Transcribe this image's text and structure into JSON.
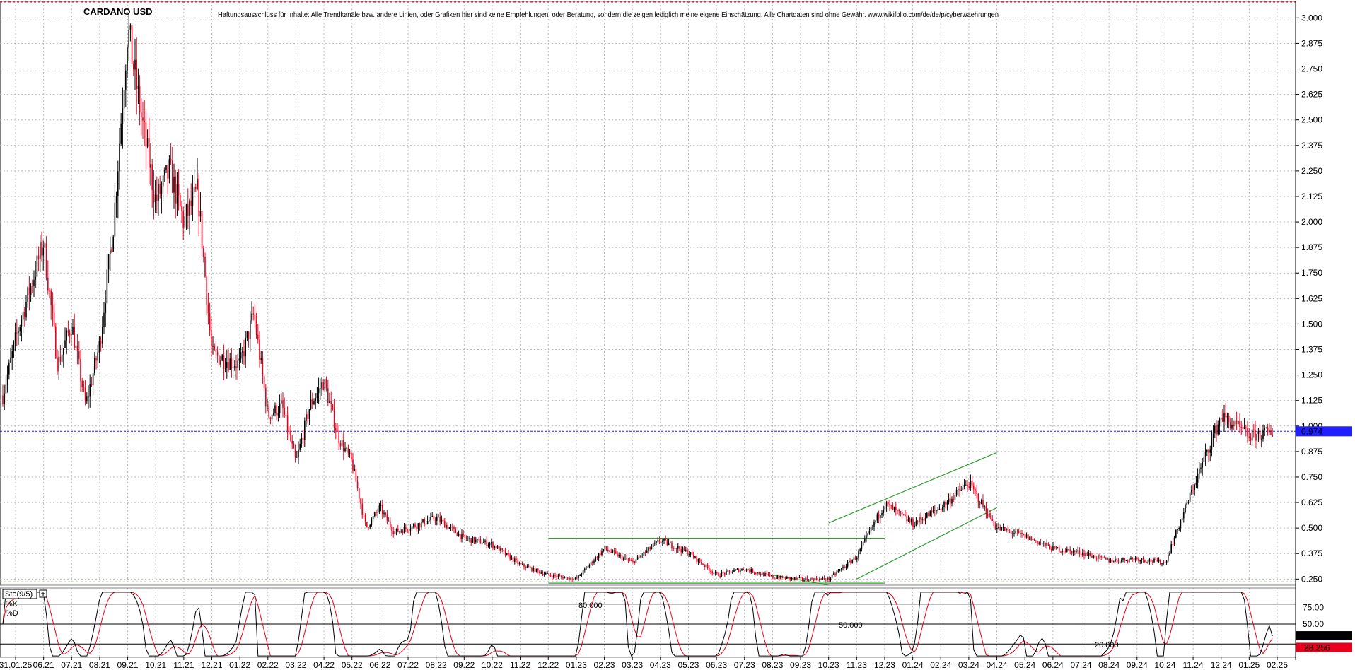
{
  "chart_data": [
    {
      "type": "candlestick",
      "title": "CARDANO USD",
      "subtitle": "Haftungsausschluss für Inhalte: Alle Trendkanäle bzw. andere Linien, oder Grafiken hier sind keine Empfehlungen, oder Beratung, sondern die zeigen lediglich meine eigene Einschätzung. Alle Chartdaten sind ohne Gewähr. www.wikifolio.com/de/de/p/cyberwaehrungen",
      "x_ticks": [
        "31.01.25",
        "06.21",
        "07.21",
        "08.21",
        "09.21",
        "10.21",
        "11.21",
        "12.21",
        "01.22",
        "02.22",
        "03.22",
        "04.22",
        "05.22",
        "06.22",
        "07.22",
        "08.22",
        "09.22",
        "10.22",
        "11.22",
        "12.22",
        "01.23",
        "02.23",
        "03.23",
        "04.23",
        "05.23",
        "06.23",
        "07.23",
        "08.23",
        "09.23",
        "10.23",
        "11.23",
        "12.23",
        "01.24",
        "02.24",
        "03.24",
        "04.24",
        "05.24",
        "06.24",
        "07.24",
        "08.24",
        "09.24",
        "10.24",
        "11.24",
        "12.24",
        "01.25",
        "02.25"
      ],
      "y_ticks": [
        "3.000",
        "2.875",
        "2.750",
        "2.625",
        "2.500",
        "2.375",
        "2.250",
        "2.125",
        "2.000",
        "1.875",
        "1.750",
        "1.625",
        "1.500",
        "1.375",
        "1.250",
        "1.125",
        "1.000",
        "0.875",
        "0.750",
        "0.625",
        "0.500",
        "0.375",
        "0.250"
      ],
      "ylim": [
        0.22,
        3.06
      ],
      "grid": true,
      "last_price_label": "0.974",
      "last_price": 0.974,
      "colors": {
        "up": "#000000",
        "down": "#e8001c",
        "trend": "#2e9e2e",
        "last": "#1f1fff"
      },
      "anchors": [
        [
          "05.21",
          1.15
        ],
        [
          "05.21",
          1.45
        ],
        [
          "06.21",
          1.9
        ],
        [
          "06.21",
          1.3
        ],
        [
          "07.21",
          1.5
        ],
        [
          "07.21",
          1.1
        ],
        [
          "08.21",
          1.4
        ],
        [
          "08.21",
          2.0
        ],
        [
          "09.21",
          2.95
        ],
        [
          "09.21",
          2.5
        ],
        [
          "10.21",
          2.1
        ],
        [
          "10.21",
          2.25
        ],
        [
          "11.21",
          2.0
        ],
        [
          "11.21",
          2.15
        ],
        [
          "12.21",
          1.35
        ],
        [
          "01.22",
          1.3
        ],
        [
          "01.22",
          1.55
        ],
        [
          "02.22",
          1.05
        ],
        [
          "02.22",
          1.1
        ],
        [
          "03.22",
          0.82
        ],
        [
          "03.22",
          1.1
        ],
        [
          "04.22",
          1.22
        ],
        [
          "04.22",
          0.95
        ],
        [
          "05.22",
          0.82
        ],
        [
          "05.22",
          0.5
        ],
        [
          "06.22",
          0.6
        ],
        [
          "06.22",
          0.48
        ],
        [
          "07.22",
          0.5
        ],
        [
          "08.22",
          0.55
        ],
        [
          "09.22",
          0.45
        ],
        [
          "10.22",
          0.42
        ],
        [
          "11.22",
          0.32
        ],
        [
          "12.22",
          0.27
        ],
        [
          "01.23",
          0.25
        ],
        [
          "02.23",
          0.4
        ],
        [
          "03.23",
          0.33
        ],
        [
          "04.23",
          0.44
        ],
        [
          "05.23",
          0.38
        ],
        [
          "06.23",
          0.27
        ],
        [
          "07.23",
          0.3
        ],
        [
          "08.23",
          0.26
        ],
        [
          "09.23",
          0.25
        ],
        [
          "10.23",
          0.25
        ],
        [
          "11.23",
          0.36
        ],
        [
          "12.23",
          0.62
        ],
        [
          "01.24",
          0.52
        ],
        [
          "02.24",
          0.6
        ],
        [
          "03.24",
          0.72
        ],
        [
          "04.24",
          0.5
        ],
        [
          "05.24",
          0.46
        ],
        [
          "06.24",
          0.4
        ],
        [
          "07.24",
          0.38
        ],
        [
          "08.24",
          0.34
        ],
        [
          "09.24",
          0.35
        ],
        [
          "10.24",
          0.33
        ],
        [
          "11.24",
          0.7
        ],
        [
          "12.24",
          1.05
        ],
        [
          "01.25",
          0.95
        ],
        [
          "02.25",
          0.974
        ]
      ],
      "trendlines": [
        {
          "from": [
            "12.22",
            0.45
          ],
          "to": [
            "12.23",
            0.45
          ]
        },
        {
          "from": [
            "12.22",
            0.23
          ],
          "to": [
            "12.23",
            0.23
          ]
        },
        {
          "from": [
            "08.23",
            0.27
          ],
          "to": [
            "10.23",
            0.22
          ]
        },
        {
          "from": [
            "10.23",
            0.525
          ],
          "to": [
            "04.24",
            0.87
          ]
        },
        {
          "from": [
            "11.23",
            0.25
          ],
          "to": [
            "04.24",
            0.6
          ]
        }
      ]
    },
    {
      "type": "line",
      "title": "Sto(9/5)",
      "series": [
        {
          "name": "%K",
          "color": "#000000"
        },
        {
          "name": "%D",
          "color": "#e8001c"
        }
      ],
      "y_ticks": [
        "75.00",
        "50.00"
      ],
      "ylim": [
        0,
        100
      ],
      "levels": [
        {
          "label": "80.000",
          "value": 80
        },
        {
          "label": "50.000",
          "value": 50
        },
        {
          "label": "20.000",
          "value": 20
        }
      ],
      "last_k_label": "31.855",
      "last_d_label": "28.256",
      "last_k": 31.855,
      "last_d": 28.256
    }
  ]
}
